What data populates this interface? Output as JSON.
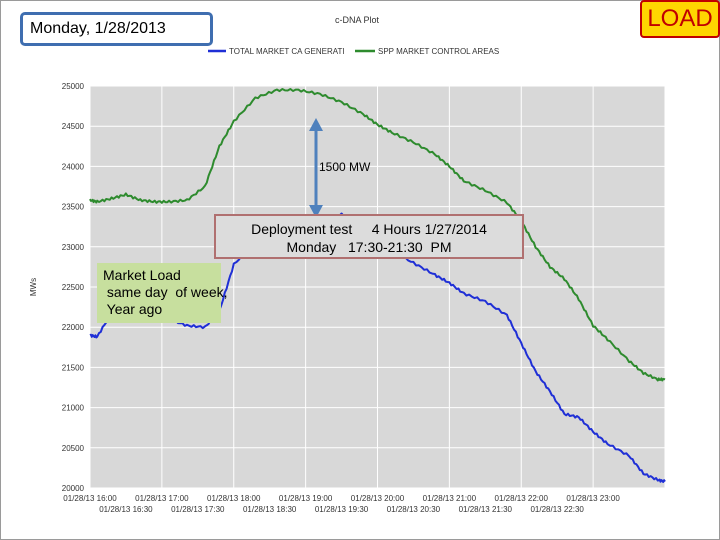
{
  "header": {
    "date": "Monday, 1/28/2013",
    "badge": "LOAD"
  },
  "callouts": {
    "peak_diff": "1500 MW",
    "deployment_line1": "Deployment test     4 Hours 1/27/2014",
    "deployment_line2": "Monday   17:30-21:30  PM",
    "market_line1": "Market Load",
    "market_line2": " same day  of week,",
    "market_line3": " Year ago"
  },
  "colors": {
    "green": "#2e8b2e",
    "blue": "#1f2fd6",
    "arrow": "#4f81bd",
    "plot_bg": "#d8d8d8"
  },
  "chart_data": {
    "type": "line",
    "title": "c-DNA Plot",
    "ylabel": "MWs",
    "ylim": [
      20000,
      25000
    ],
    "xlim": [
      0,
      8
    ],
    "yticks": [
      20000,
      20500,
      21000,
      21500,
      22000,
      22500,
      23000,
      23500,
      24000,
      24500,
      25000
    ],
    "ytick_labels": [
      "20000",
      "20500",
      "21000",
      "21500",
      "22000",
      "22500",
      "23000",
      "23500",
      "24000",
      "24500",
      "25000"
    ],
    "xtick_labels_top": [
      "01/28/13 16:00",
      "01/28/13 17:00",
      "01/28/13 18:00",
      "01/28/13 19:00",
      "01/28/13 20:00",
      "01/28/13 21:00",
      "01/28/13 22:00",
      "01/28/13 23:00"
    ],
    "xtick_labels_bottom": [
      "01/28/13 16:30",
      "01/28/13 17:30",
      "01/28/13 18:30",
      "01/28/13 19:30",
      "01/28/13 20:30",
      "01/28/13 21:30",
      "01/28/13 22:30"
    ],
    "series": [
      {
        "name": "TOTAL MARKET CA GENERATI",
        "color": "#1f2fd6",
        "x": [
          0,
          0.1,
          0.3,
          0.5,
          0.7,
          0.9,
          1.1,
          1.35,
          1.6,
          1.8,
          2.0,
          2.3,
          2.6,
          2.9,
          3.2,
          3.5,
          3.8,
          4.0,
          4.2,
          4.5,
          4.8,
          5.0,
          5.2,
          5.5,
          5.8,
          6.0,
          6.2,
          6.4,
          6.6,
          6.8,
          7.0,
          7.2,
          7.5,
          7.7,
          7.9,
          8.0
        ],
        "values": [
          21900,
          21880,
          22180,
          22150,
          22280,
          22120,
          22100,
          22020,
          22000,
          22200,
          22780,
          23050,
          23280,
          23350,
          23320,
          23400,
          23280,
          23100,
          22950,
          22800,
          22650,
          22550,
          22420,
          22320,
          22150,
          21800,
          21450,
          21200,
          20920,
          20880,
          20700,
          20550,
          20400,
          20180,
          20100,
          20080
        ]
      },
      {
        "name": "SPP MARKET CONTROL AREAS",
        "color": "#2e8b2e",
        "x": [
          0,
          0.1,
          0.3,
          0.5,
          0.7,
          0.9,
          1.1,
          1.35,
          1.6,
          1.8,
          2.0,
          2.3,
          2.6,
          2.9,
          3.2,
          3.5,
          3.8,
          4.0,
          4.2,
          4.5,
          4.8,
          5.0,
          5.2,
          5.5,
          5.8,
          6.0,
          6.2,
          6.4,
          6.6,
          6.8,
          7.0,
          7.2,
          7.5,
          7.7,
          7.9,
          8.0
        ],
        "values": [
          23580,
          23560,
          23600,
          23650,
          23580,
          23560,
          23560,
          23580,
          23750,
          24250,
          24560,
          24850,
          24950,
          24950,
          24900,
          24800,
          24650,
          24520,
          24420,
          24300,
          24150,
          24000,
          23820,
          23700,
          23550,
          23320,
          23000,
          22750,
          22600,
          22350,
          22020,
          21850,
          21580,
          21430,
          21350,
          21350
        ]
      }
    ]
  }
}
